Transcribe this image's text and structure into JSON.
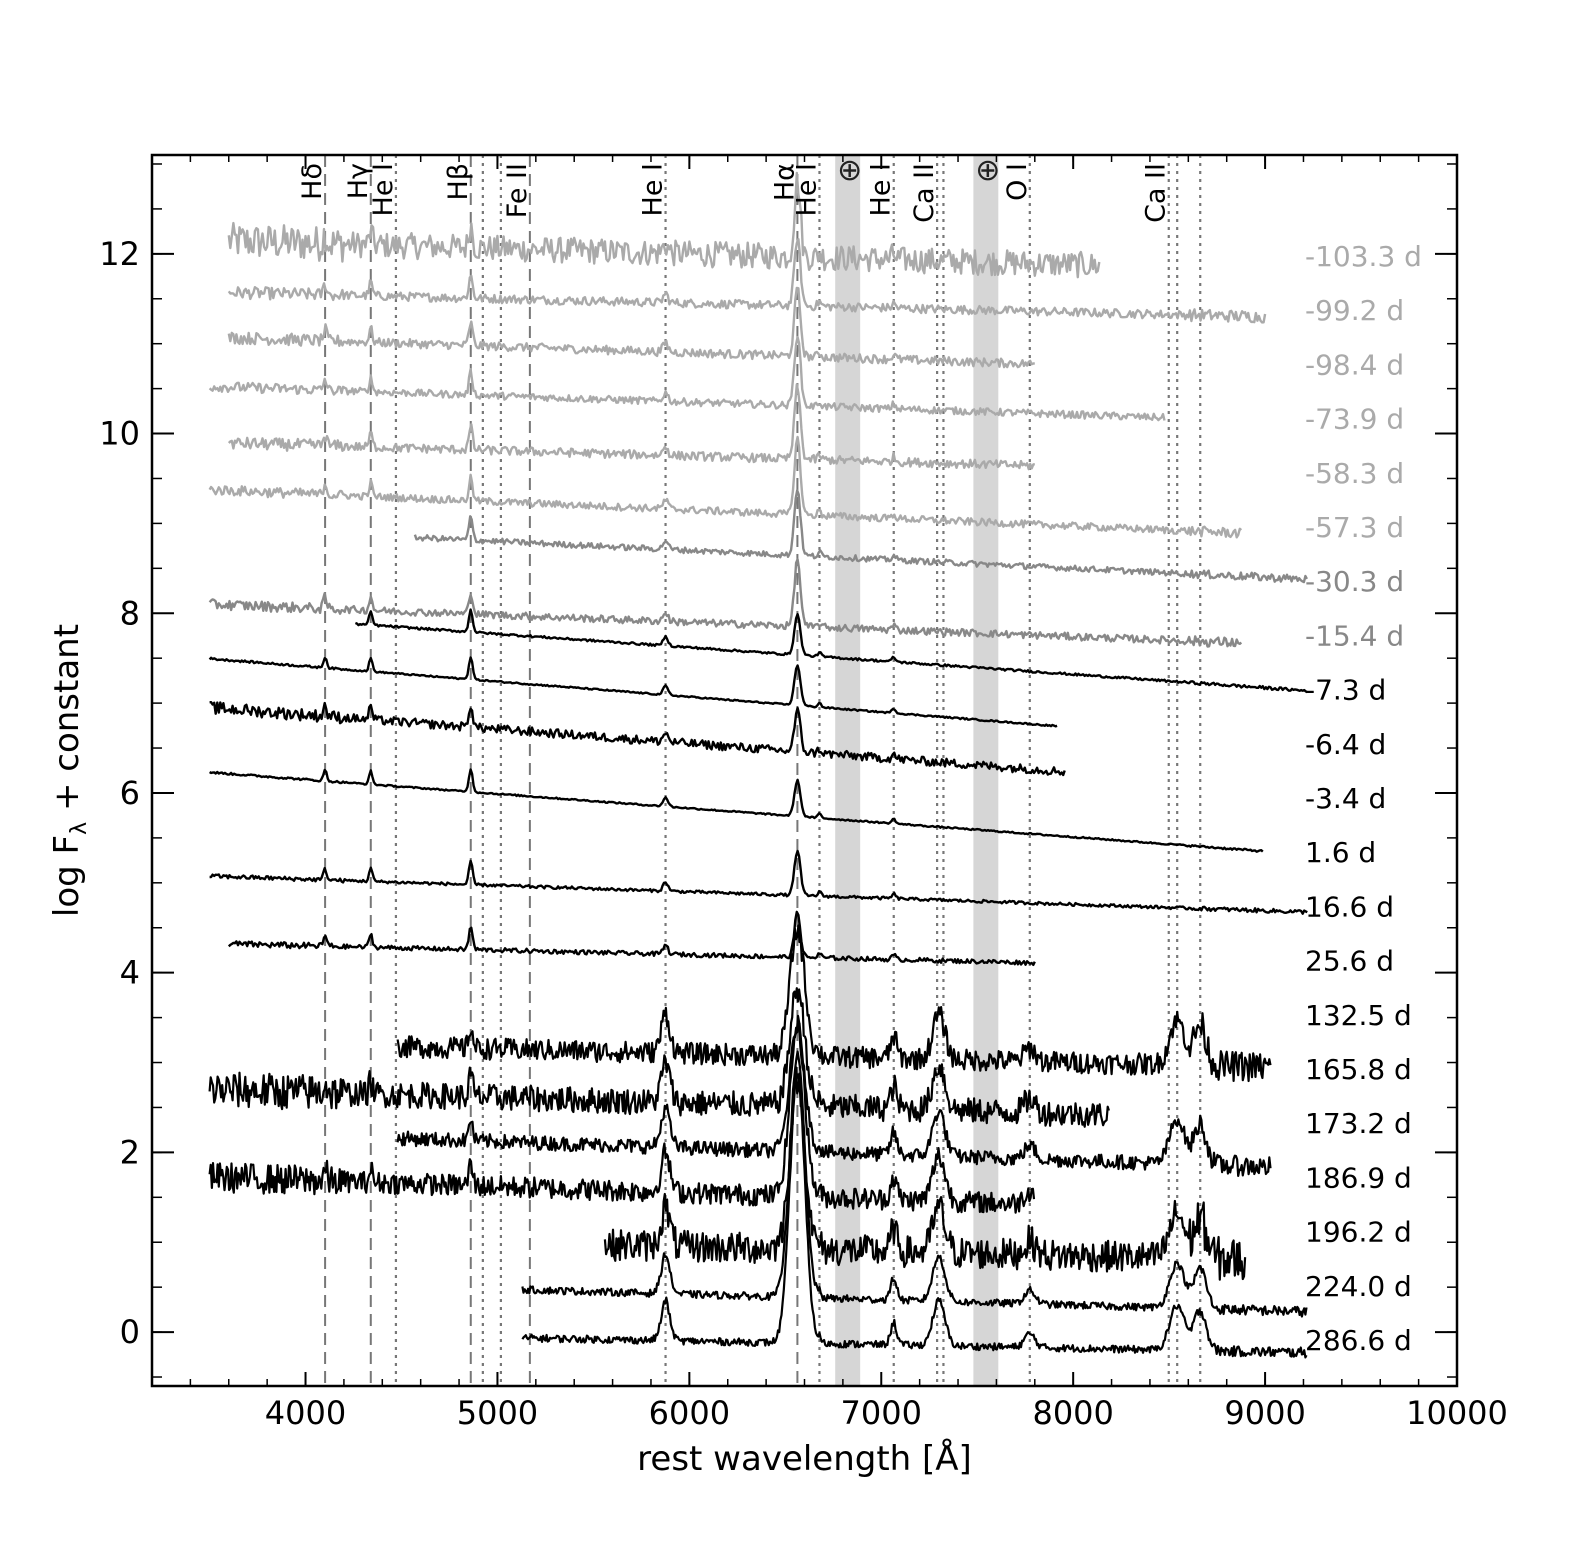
{
  "chart_data": {
    "type": "line",
    "xlabel": "rest wavelength [Å]",
    "ylabel_main": "log F",
    "ylabel_sub": "λ",
    "ylabel_rest": " + constant",
    "xlim": [
      3200,
      10000
    ],
    "ylim": [
      -0.6,
      13.1
    ],
    "x_ticks": [
      4000,
      5000,
      6000,
      7000,
      8000,
      9000,
      10000
    ],
    "x_tick_labels": [
      "4000",
      "5000",
      "6000",
      "7000",
      "8000",
      "9000",
      "10000"
    ],
    "y_ticks": [
      0,
      2,
      4,
      6,
      8,
      10,
      12
    ],
    "y_tick_labels": [
      "0",
      "2",
      "4",
      "6",
      "8",
      "10",
      "12"
    ],
    "grid": false,
    "telluric_bands": [
      {
        "from": 6760,
        "to": 6890,
        "label": "⊕"
      },
      {
        "from": 7480,
        "to": 7610,
        "label": "⊕"
      }
    ],
    "line_markers": [
      {
        "label": "Hδ",
        "x": 4102,
        "style": "dashed"
      },
      {
        "label": "Hγ",
        "x": 4340,
        "style": "dashed"
      },
      {
        "label": "He I",
        "x": 4471,
        "style": "dotted"
      },
      {
        "label": "Hβ",
        "x": 4861,
        "style": "dashed"
      },
      {
        "label": "",
        "x": 4924,
        "style": "dotted"
      },
      {
        "label": "",
        "x": 5018,
        "style": "dotted"
      },
      {
        "label": "Fe II",
        "x": 5169,
        "style": "dashed"
      },
      {
        "label": "He I",
        "x": 5876,
        "style": "dotted"
      },
      {
        "label": "Hα",
        "x": 6563,
        "style": "dashed"
      },
      {
        "label": "He I",
        "x": 6678,
        "style": "dotted"
      },
      {
        "label": "He I",
        "x": 7065,
        "style": "dotted"
      },
      {
        "label": "Ca II",
        "x": 7291,
        "style": "dotted"
      },
      {
        "label": "",
        "x": 7324,
        "style": "dotted"
      },
      {
        "label": "O I",
        "x": 7774,
        "style": "dotted"
      },
      {
        "label": "Ca II",
        "x": 8498,
        "style": "dotted"
      },
      {
        "label": "",
        "x": 8542,
        "style": "dotted"
      },
      {
        "label": "",
        "x": 8662,
        "style": "dotted"
      }
    ],
    "series": [
      {
        "name": "-103.3 d",
        "color": "#aaaaaa",
        "offset": 12.0,
        "range": [
          3600,
          8140
        ],
        "noise": 0.18,
        "slope": -0.06,
        "ha": 0.85
      },
      {
        "name": "-99.2 d",
        "color": "#aaaaaa",
        "offset": 11.45,
        "range": [
          3600,
          9000
        ],
        "noise": 0.06,
        "slope": -0.05,
        "ha": 0.75
      },
      {
        "name": "-98.4 d",
        "color": "#aaaaaa",
        "offset": 10.9,
        "range": [
          3600,
          7800
        ],
        "noise": 0.06,
        "slope": -0.07,
        "ha": 0.75
      },
      {
        "name": "-73.9 d",
        "color": "#aaaaaa",
        "offset": 10.35,
        "range": [
          3500,
          8480
        ],
        "noise": 0.05,
        "slope": -0.07,
        "ha": 0.8
      },
      {
        "name": "-58.3 d",
        "color": "#aaaaaa",
        "offset": 9.75,
        "range": [
          3600,
          7800
        ],
        "noise": 0.06,
        "slope": -0.06,
        "ha": 0.8
      },
      {
        "name": "-57.3 d",
        "color": "#aaaaaa",
        "offset": 9.15,
        "range": [
          3500,
          8880
        ],
        "noise": 0.05,
        "slope": -0.09,
        "ha": 0.85
      },
      {
        "name": "-30.3 d",
        "color": "#888888",
        "offset": 8.7,
        "range": [
          4570,
          9220
        ],
        "noise": 0.04,
        "slope": -0.1,
        "ha": 0.75
      },
      {
        "name": "-15.4 d",
        "color": "#888888",
        "offset": 7.9,
        "range": [
          3500,
          8880
        ],
        "noise": 0.05,
        "slope": -0.08,
        "ha": 0.75
      },
      {
        "name": "-7.3 d",
        "color": "#000000",
        "offset": 7.62,
        "range": [
          4260,
          9220
        ],
        "noise": 0.015,
        "slope": -0.15,
        "ha": 0.45
      },
      {
        "name": "-6.4 d",
        "color": "#000000",
        "offset": 7.07,
        "range": [
          3500,
          7920
        ],
        "noise": 0.01,
        "slope": -0.17,
        "ha": 0.45
      },
      {
        "name": "-3.4 d",
        "color": "#000000",
        "offset": 6.55,
        "range": [
          3500,
          7960
        ],
        "noise": 0.06,
        "slope": -0.16,
        "ha": 0.45
      },
      {
        "name": "1.6 d",
        "color": "#000000",
        "offset": 5.83,
        "range": [
          3500,
          8990
        ],
        "noise": 0.01,
        "slope": -0.16,
        "ha": 0.4
      },
      {
        "name": "16.6 d",
        "color": "#000000",
        "offset": 4.9,
        "range": [
          3500,
          9220
        ],
        "noise": 0.02,
        "slope": -0.07,
        "ha": 0.5
      },
      {
        "name": "25.6 d",
        "color": "#000000",
        "offset": 4.2,
        "range": [
          3600,
          7800
        ],
        "noise": 0.03,
        "slope": -0.05,
        "ha": 0.5
      },
      {
        "name": "132.5 d",
        "color": "#000000",
        "offset": 3.1,
        "range": [
          4480,
          9030
        ],
        "noise": 0.15,
        "slope": -0.05,
        "ha": 1.4
      },
      {
        "name": "165.8 d",
        "color": "#000000",
        "offset": 2.55,
        "range": [
          3500,
          8190
        ],
        "noise": 0.18,
        "slope": -0.06,
        "ha": 1.3
      },
      {
        "name": "173.2 d",
        "color": "#000000",
        "offset": 2.05,
        "range": [
          4480,
          9030
        ],
        "noise": 0.1,
        "slope": -0.07,
        "ha": 1.4
      },
      {
        "name": "186.9 d",
        "color": "#000000",
        "offset": 1.55,
        "range": [
          3500,
          7800
        ],
        "noise": 0.15,
        "slope": -0.07,
        "ha": 1.9
      },
      {
        "name": "196.2 d",
        "color": "#000000",
        "offset": 0.95,
        "range": [
          5560,
          8900
        ],
        "noise": 0.22,
        "slope": -0.05,
        "ha": 1.9
      },
      {
        "name": "224.0 d",
        "color": "#000000",
        "offset": 0.42,
        "range": [
          5130,
          9220
        ],
        "noise": 0.05,
        "slope": -0.06,
        "ha": 2.7
      },
      {
        "name": "286.6 d",
        "color": "#000000",
        "offset": -0.1,
        "range": [
          5130,
          9220
        ],
        "noise": 0.05,
        "slope": -0.04,
        "ha": 3.0
      }
    ]
  }
}
